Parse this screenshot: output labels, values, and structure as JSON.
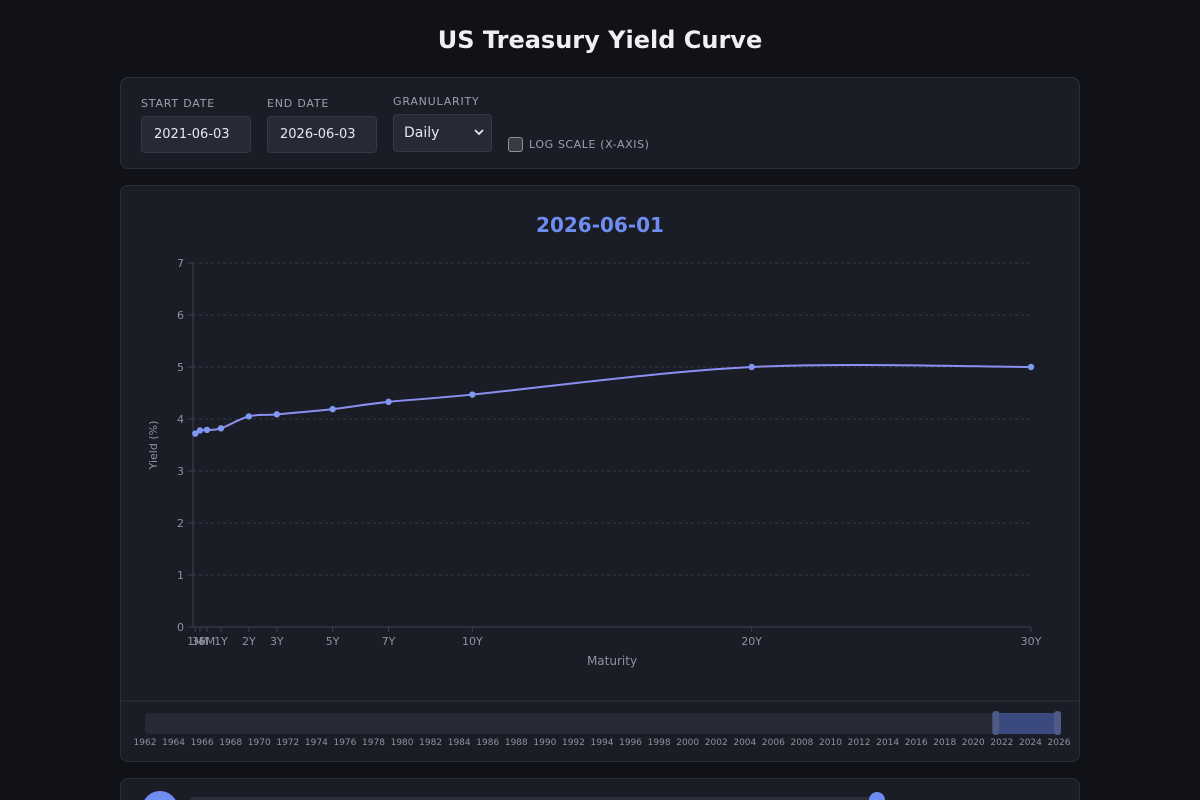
{
  "header": {
    "title": "US Treasury Yield Curve"
  },
  "controls": {
    "start_date_label": "START DATE",
    "start_date_value": "2021-06-03",
    "end_date_label": "END DATE",
    "end_date_value": "2026-06-03",
    "granularity_label": "GRANULARITY",
    "granularity_value": "Daily",
    "log_scale_label": "LOG SCALE (X-AXIS)",
    "log_scale_checked": false
  },
  "chart_data": {
    "type": "line",
    "title": "2026-06-01",
    "xlabel": "Maturity",
    "ylabel": "Yield (%)",
    "xlim": [
      0,
      30
    ],
    "ylim": [
      0,
      7
    ],
    "yticks": [
      0,
      1,
      2,
      3,
      4,
      5,
      6,
      7
    ],
    "grid": true,
    "log_scale_x": false,
    "series": [
      {
        "color": "#8b8ff0",
        "points": [
          {
            "tick": "1M",
            "x": 0.083,
            "y": 3.72
          },
          {
            "tick": "3M",
            "x": 0.25,
            "y": 3.78
          },
          {
            "tick": "6M",
            "x": 0.5,
            "y": 3.79
          },
          {
            "tick": "1Y",
            "x": 1,
            "y": 3.82
          },
          {
            "tick": "2Y",
            "x": 2,
            "y": 4.05
          },
          {
            "tick": "3Y",
            "x": 3,
            "y": 4.09
          },
          {
            "tick": "5Y",
            "x": 5,
            "y": 4.19
          },
          {
            "tick": "7Y",
            "x": 7,
            "y": 4.33
          },
          {
            "tick": "10Y",
            "x": 10,
            "y": 4.47
          },
          {
            "tick": "20Y",
            "x": 20,
            "y": 5.0
          },
          {
            "tick": "30Y",
            "x": 30,
            "y": 5.0
          }
        ]
      }
    ]
  },
  "timeline": {
    "year_labels": [
      "1962",
      "1964",
      "1966",
      "1968",
      "1970",
      "1972",
      "1974",
      "1976",
      "1978",
      "1980",
      "1982",
      "1984",
      "1986",
      "1988",
      "1990",
      "1992",
      "1994",
      "1996",
      "1998",
      "2000",
      "2002",
      "2004",
      "2006",
      "2008",
      "2010",
      "2012",
      "2014",
      "2016",
      "2018",
      "2020",
      "2022",
      "2024",
      "2026"
    ],
    "range_start_year": 2021.4,
    "range_end_year": 2026.4,
    "axis_start_year": 1962,
    "axis_end_year": 2026
  },
  "playback": {
    "progress": 0.99
  },
  "colors": {
    "accent": "#6f8df0",
    "line": "#8b8ff0",
    "panel": "#1b1d26",
    "background": "#111217"
  }
}
